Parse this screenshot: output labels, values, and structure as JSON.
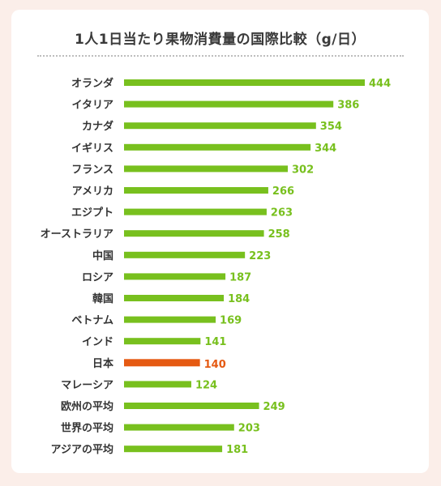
{
  "chart_data": {
    "type": "bar",
    "orientation": "horizontal",
    "title": "1人1日当たり果物消費量の国際比較（g/日）",
    "categories": [
      "オランダ",
      "イタリア",
      "カナダ",
      "イギリス",
      "フランス",
      "アメリカ",
      "エジプト",
      "オーストラリア",
      "中国",
      "ロシア",
      "韓国",
      "ベトナム",
      "インド",
      "日本",
      "マレーシア",
      "欧州の平均",
      "世界の平均",
      "アジアの平均"
    ],
    "values": [
      444,
      386,
      354,
      344,
      302,
      266,
      263,
      258,
      223,
      187,
      184,
      169,
      141,
      140,
      124,
      249,
      203,
      181
    ],
    "highlight_category": "日本",
    "xlim": [
      0,
      444
    ],
    "grid": false,
    "colors": {
      "bar": "#78c01e",
      "highlight": "#e55a12",
      "label": "#333333"
    }
  }
}
